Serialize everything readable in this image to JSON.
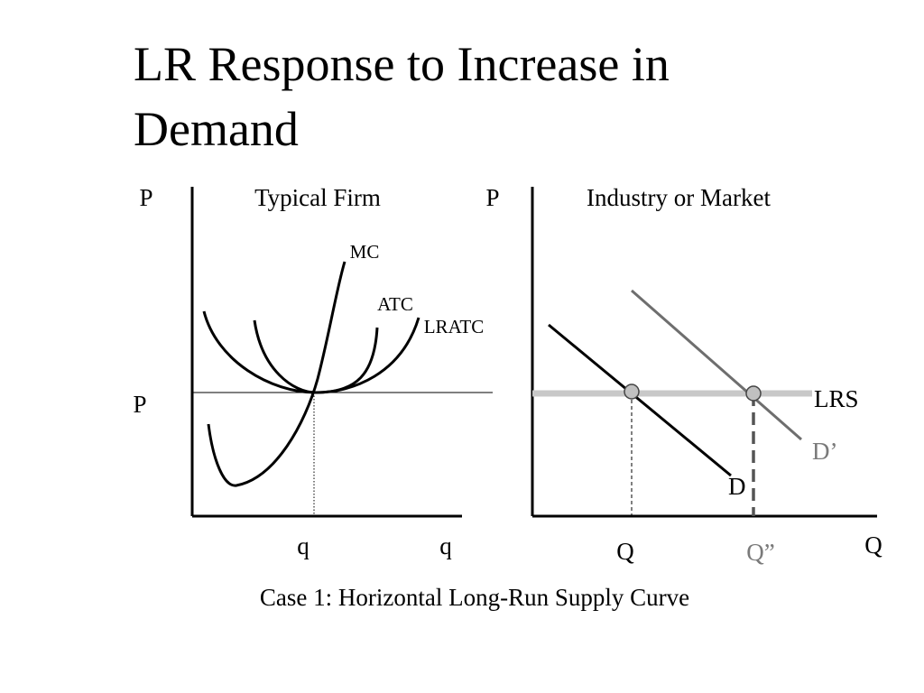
{
  "slide": {
    "title_line1": "LR Response to Increase in",
    "title_line2": "Demand",
    "caption": "Case 1:  Horizontal Long-Run Supply Curve"
  },
  "firm_panel": {
    "axis_y_label": "P",
    "panel_title": "Typical Firm",
    "price_label": "P",
    "qty_tick_label": "q",
    "axis_x_label": "q",
    "curves": {
      "mc": "MC",
      "atc": "ATC",
      "lratc": "LRATC"
    }
  },
  "market_panel": {
    "axis_y_label": "P",
    "panel_title": "Industry or Market",
    "axis_x_label": "Q",
    "q_initial": "Q",
    "q_new": "Q”",
    "curves": {
      "lrs": "LRS",
      "d": "D",
      "d_prime": "D’"
    }
  },
  "colors": {
    "axis": "#000000",
    "curve": "#000000",
    "lrs_line": "#c8c8c8",
    "new_demand": "#6e6e6e",
    "new_label": "#7a7a7a",
    "point_fill": "#c0c0c0"
  }
}
